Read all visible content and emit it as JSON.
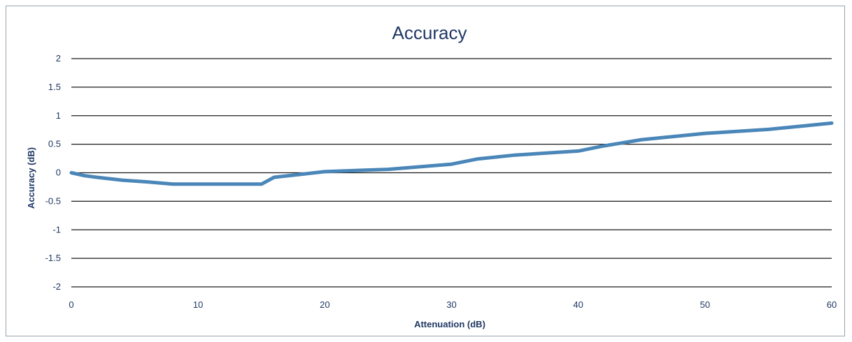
{
  "chart_data": {
    "type": "line",
    "title": "Accuracy",
    "xlabel": "Attenuation (dB)",
    "ylabel": "Accuracy (dB)",
    "xlim": [
      0,
      60
    ],
    "ylim": [
      -2,
      2
    ],
    "x_ticks": [
      "0",
      "10",
      "20",
      "30",
      "40",
      "50",
      "60"
    ],
    "y_ticks": [
      "2",
      "1.5",
      "1",
      "0.5",
      "0",
      "-0.5",
      "-1",
      "-1.5",
      "-2"
    ],
    "grid": true,
    "legend": "none",
    "series_color": "#4a86b8",
    "series": [
      {
        "x": [
          0,
          1,
          2,
          4,
          6,
          8,
          10,
          12,
          14,
          15,
          16,
          18,
          20,
          25,
          30,
          32,
          35,
          40,
          42,
          45,
          50,
          55,
          60
        ],
        "y": [
          0,
          -0.05,
          -0.08,
          -0.13,
          -0.16,
          -0.2,
          -0.2,
          -0.2,
          -0.2,
          -0.2,
          -0.08,
          -0.03,
          0.02,
          0.06,
          0.15,
          0.24,
          0.31,
          0.38,
          0.47,
          0.58,
          0.69,
          0.76,
          0.87
        ]
      }
    ]
  }
}
